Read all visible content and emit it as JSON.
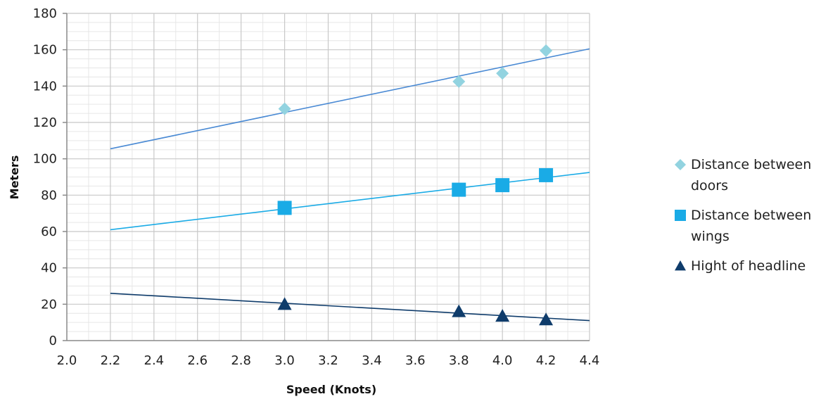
{
  "chart_data": {
    "type": "scatter",
    "title": "",
    "xlabel": "Speed (Knots)",
    "ylabel": "Meters",
    "xlim": [
      2.0,
      4.4
    ],
    "ylim": [
      0,
      180
    ],
    "x_ticks": [
      "2.0",
      "2.2",
      "2.4",
      "2.6",
      "2.8",
      "3.0",
      "3.2",
      "3.4",
      "3.6",
      "3.8",
      "4.0",
      "4.2",
      "4.4"
    ],
    "y_ticks": [
      "0",
      "20",
      "40",
      "60",
      "80",
      "100",
      "120",
      "140",
      "160",
      "180"
    ],
    "grid": true,
    "legend_position": "right",
    "series": [
      {
        "name": "Distance between doors",
        "legend_lines": [
          "Distance between",
          "doors"
        ],
        "marker": "diamond",
        "color": "#92d3e0",
        "trend_color": "#4a8ad4",
        "x": [
          3.0,
          3.8,
          4.0,
          4.2
        ],
        "y": [
          127.5,
          142.5,
          147,
          159.5
        ],
        "trendline": {
          "x": [
            2.2,
            4.4
          ],
          "y": [
            105.5,
            160.5
          ]
        }
      },
      {
        "name": "Distance between wings",
        "legend_lines": [
          "Distance between",
          "wings"
        ],
        "marker": "square",
        "color": "#1aabe6",
        "trend_color": "#1aabe6",
        "x": [
          3.0,
          3.8,
          4.0,
          4.2
        ],
        "y": [
          73,
          83,
          85.5,
          91
        ],
        "trendline": {
          "x": [
            2.2,
            4.4
          ],
          "y": [
            61,
            92.5
          ]
        }
      },
      {
        "name": "Hight of headline",
        "legend_lines": [
          "Hight of headline"
        ],
        "marker": "triangle",
        "color": "#0f3c6b",
        "trend_color": "#0f3c6b",
        "x": [
          3.0,
          3.8,
          4.0,
          4.2
        ],
        "y": [
          20,
          16,
          13.5,
          11.5
        ],
        "trendline": {
          "x": [
            2.2,
            4.4
          ],
          "y": [
            26,
            11
          ]
        }
      }
    ]
  }
}
